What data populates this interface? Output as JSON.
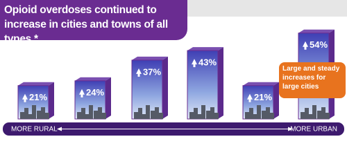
{
  "chart_data": {
    "type": "bar",
    "title": "Opioid overdoses continued to increase in cities and towns of all types.*",
    "categories": [
      null,
      null,
      null,
      null,
      null,
      null
    ],
    "values": [
      21,
      24,
      37,
      43,
      21,
      54
    ],
    "value_labels": [
      "21%",
      "24%",
      "37%",
      "43%",
      "21%",
      "54%"
    ],
    "ylim": [
      0,
      60
    ],
    "x_label_left": "MORE RURAL",
    "x_label_right": "MORE URBAN",
    "annotation": "Large and steady increases for large cities",
    "color": "#3f3fb4"
  }
}
